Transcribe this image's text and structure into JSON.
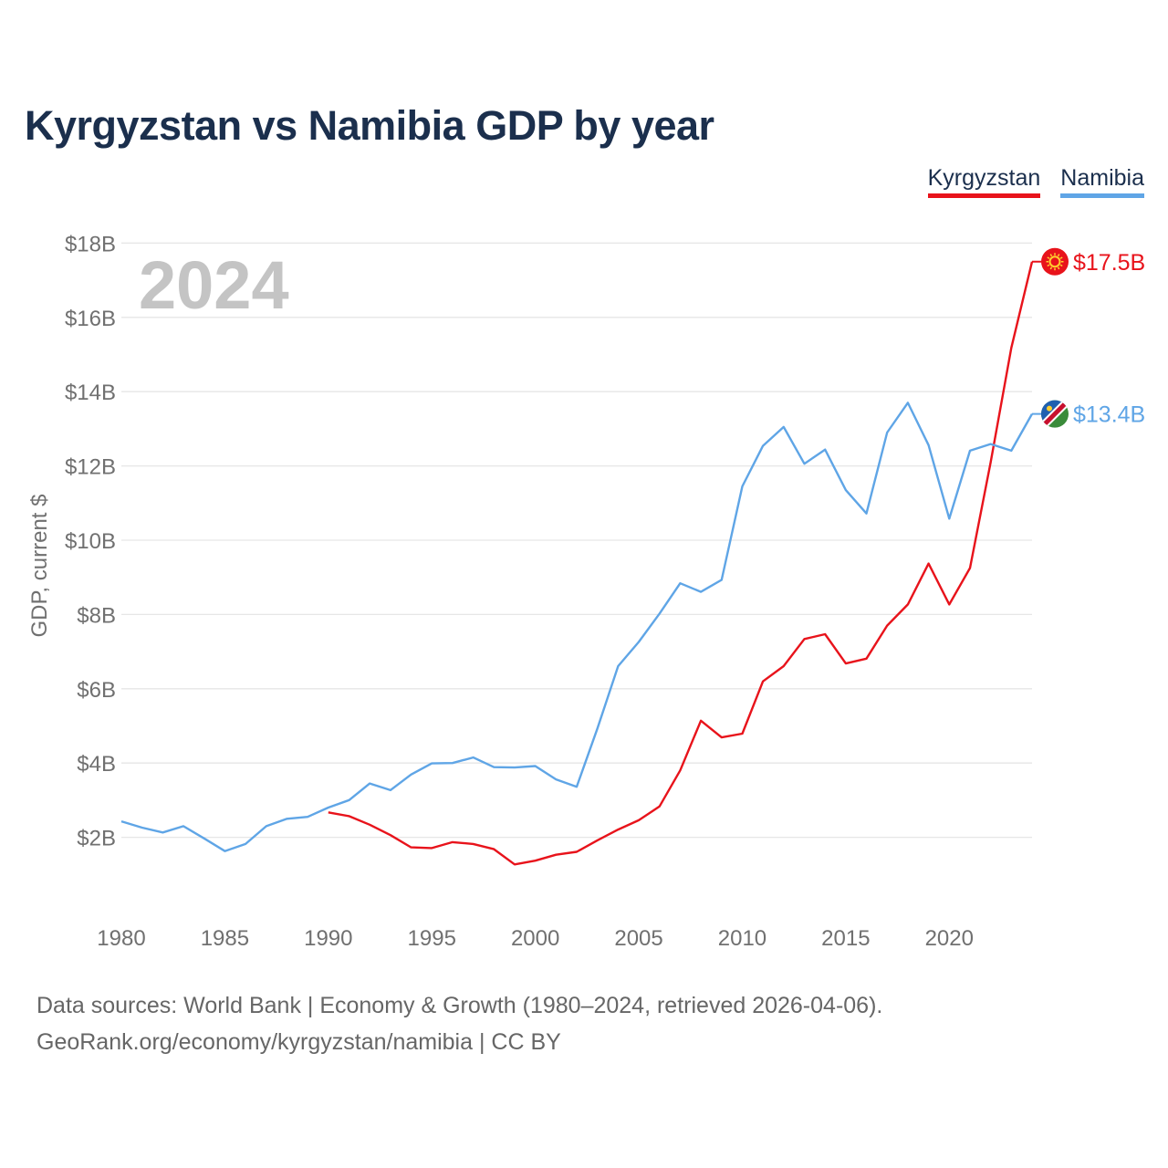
{
  "title": "Kyrgyzstan vs Namibia GDP by year",
  "year_label": "2024",
  "legend": [
    {
      "name": "Kyrgyzstan",
      "color": "#e8131b"
    },
    {
      "name": "Namibia",
      "color": "#5fa5e6"
    }
  ],
  "source": {
    "line1": "Data sources: World Bank | Economy & Growth (1980–2024, retrieved 2026-04-06).",
    "line2": "GeoRank.org/economy/kyrgyzstan/namibia | CC BY"
  },
  "chart_data": {
    "type": "line",
    "title": "Kyrgyzstan vs Namibia GDP by year",
    "xlabel": "",
    "ylabel": "GDP, current $",
    "xlim": [
      1980,
      2024
    ],
    "ylim": [
      0,
      18
    ],
    "y_ticks": [
      2,
      4,
      6,
      8,
      10,
      12,
      14,
      16,
      18
    ],
    "y_tick_labels": [
      "$2B",
      "$4B",
      "$6B",
      "$8B",
      "$10B",
      "$12B",
      "$14B",
      "$16B",
      "$18B"
    ],
    "x_ticks": [
      1980,
      1985,
      1990,
      1995,
      2000,
      2005,
      2010,
      2015,
      2020
    ],
    "grid": true,
    "series": [
      {
        "name": "Kyrgyzstan",
        "color": "#e8131b",
        "end_label": "$17.5B",
        "points": [
          [
            1990,
            2.67
          ],
          [
            1991,
            2.57
          ],
          [
            1992,
            2.34
          ],
          [
            1993,
            2.06
          ],
          [
            1994,
            1.73
          ],
          [
            1995,
            1.71
          ],
          [
            1996,
            1.87
          ],
          [
            1997,
            1.82
          ],
          [
            1998,
            1.68
          ],
          [
            1999,
            1.27
          ],
          [
            2000,
            1.37
          ],
          [
            2001,
            1.53
          ],
          [
            2002,
            1.61
          ],
          [
            2003,
            1.92
          ],
          [
            2004,
            2.21
          ],
          [
            2005,
            2.46
          ],
          [
            2006,
            2.83
          ],
          [
            2007,
            3.8
          ],
          [
            2008,
            5.14
          ],
          [
            2009,
            4.69
          ],
          [
            2010,
            4.79
          ],
          [
            2011,
            6.2
          ],
          [
            2012,
            6.61
          ],
          [
            2013,
            7.34
          ],
          [
            2014,
            7.47
          ],
          [
            2015,
            6.68
          ],
          [
            2016,
            6.81
          ],
          [
            2017,
            7.7
          ],
          [
            2018,
            8.27
          ],
          [
            2019,
            9.37
          ],
          [
            2020,
            8.27
          ],
          [
            2021,
            9.25
          ],
          [
            2022,
            12.09
          ],
          [
            2023,
            15.18
          ],
          [
            2024,
            17.5
          ]
        ]
      },
      {
        "name": "Namibia",
        "color": "#5fa5e6",
        "end_label": "$13.4B",
        "points": [
          [
            1980,
            2.43
          ],
          [
            1981,
            2.26
          ],
          [
            1982,
            2.13
          ],
          [
            1983,
            2.3
          ],
          [
            1984,
            1.97
          ],
          [
            1985,
            1.63
          ],
          [
            1986,
            1.82
          ],
          [
            1987,
            2.3
          ],
          [
            1988,
            2.5
          ],
          [
            1989,
            2.55
          ],
          [
            1990,
            2.8
          ],
          [
            1991,
            3.0
          ],
          [
            1992,
            3.45
          ],
          [
            1993,
            3.27
          ],
          [
            1994,
            3.69
          ],
          [
            1995,
            3.99
          ],
          [
            1996,
            4.0
          ],
          [
            1997,
            4.15
          ],
          [
            1998,
            3.89
          ],
          [
            1999,
            3.88
          ],
          [
            2000,
            3.92
          ],
          [
            2001,
            3.56
          ],
          [
            2002,
            3.36
          ],
          [
            2003,
            4.93
          ],
          [
            2004,
            6.61
          ],
          [
            2005,
            7.26
          ],
          [
            2006,
            8.02
          ],
          [
            2007,
            8.84
          ],
          [
            2008,
            8.61
          ],
          [
            2009,
            8.93
          ],
          [
            2010,
            11.45
          ],
          [
            2011,
            12.54
          ],
          [
            2012,
            13.05
          ],
          [
            2013,
            12.06
          ],
          [
            2014,
            12.44
          ],
          [
            2015,
            11.35
          ],
          [
            2016,
            10.72
          ],
          [
            2017,
            12.9
          ],
          [
            2018,
            13.7
          ],
          [
            2019,
            12.56
          ],
          [
            2020,
            10.58
          ],
          [
            2021,
            12.41
          ],
          [
            2022,
            12.59
          ],
          [
            2023,
            12.41
          ],
          [
            2024,
            13.4
          ]
        ]
      }
    ]
  }
}
